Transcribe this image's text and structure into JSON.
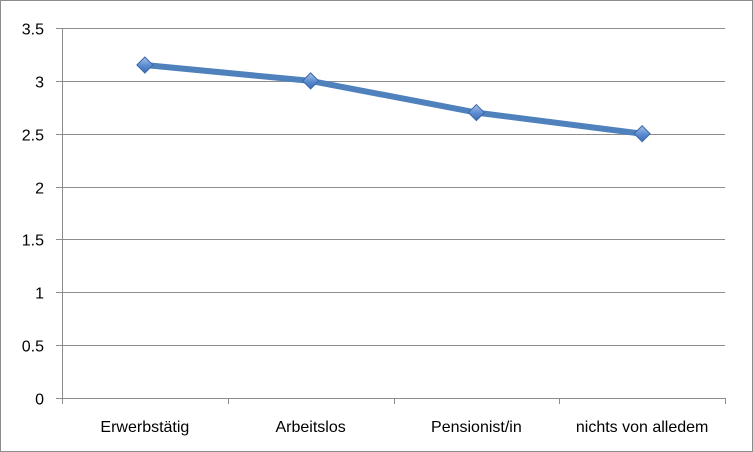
{
  "chart_data": {
    "type": "line",
    "categories": [
      "Erwerbstätig",
      "Arbeitslos",
      "Pensionist/in",
      "nichts von alledem"
    ],
    "series": [
      {
        "values": [
          3.15,
          3.0,
          2.7,
          2.5
        ],
        "color": "#4f81bd",
        "marker": "diamond"
      }
    ],
    "title": "",
    "xlabel": "",
    "ylabel": "",
    "ylim": [
      0,
      3.5
    ],
    "yticks": [
      "0",
      "0.5",
      "1",
      "1.5",
      "2",
      "2.5",
      "3",
      "3.5"
    ],
    "grid": true,
    "legend": "none"
  }
}
